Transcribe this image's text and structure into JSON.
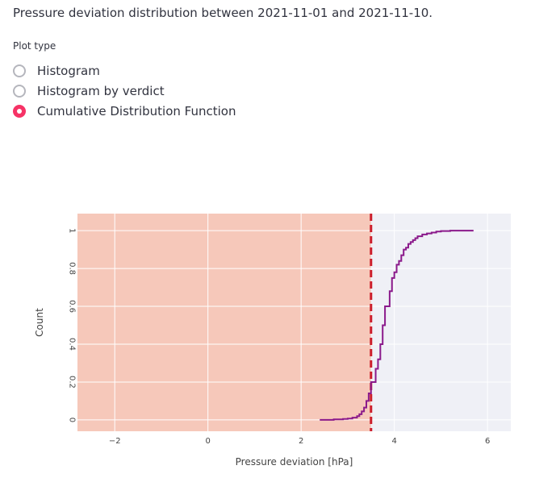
{
  "intro_text": "Pressure deviation distribution between 2021-11-01 and 2021-11-10.",
  "plot_type": {
    "label": "Plot type",
    "options": [
      {
        "label": "Histogram",
        "selected": false
      },
      {
        "label": "Histogram by verdict",
        "selected": false
      },
      {
        "label": "Cumulative Distribution Function",
        "selected": true
      }
    ]
  },
  "colors": {
    "accent": "#f63366",
    "plot_bg": "#eff0f6",
    "threshold_region": "#f6c8ba",
    "threshold_line": "#cc1e2b",
    "series_line": "#8b1a8b"
  },
  "chart_data": {
    "type": "line",
    "line_shape": "step",
    "xlabel": "Pressure deviation [hPa]",
    "ylabel": "Count",
    "xlim": [
      -2.8,
      6.5
    ],
    "ylim": [
      -0.06,
      1.09
    ],
    "xticks": [
      -2,
      0,
      2,
      4,
      6
    ],
    "yticks": [
      0,
      0.2,
      0.4,
      0.6,
      0.8,
      1
    ],
    "ytick_labels": [
      "0",
      "0.2",
      "0.4",
      "0.6",
      "0.8",
      "1"
    ],
    "grid": true,
    "threshold": 3.5,
    "shaded_region": [
      -2.8,
      3.5
    ],
    "series": [
      {
        "x": [
          2.4,
          2.7,
          2.9,
          3.0,
          3.1,
          3.2,
          3.25,
          3.3,
          3.35,
          3.4,
          3.45,
          3.5,
          3.55,
          3.6,
          3.65,
          3.7,
          3.75,
          3.8,
          3.85,
          3.9,
          3.95,
          4.0,
          4.05,
          4.1,
          4.15,
          4.2,
          4.25,
          4.3,
          4.35,
          4.4,
          4.45,
          4.5,
          4.55,
          4.6,
          4.7,
          4.8,
          4.9,
          5.0,
          5.1,
          5.2,
          5.7
        ],
        "y": [
          0,
          0.003,
          0.005,
          0.007,
          0.012,
          0.02,
          0.03,
          0.045,
          0.065,
          0.1,
          0.14,
          0.2,
          0.2,
          0.27,
          0.32,
          0.4,
          0.5,
          0.6,
          0.6,
          0.68,
          0.75,
          0.78,
          0.82,
          0.84,
          0.87,
          0.9,
          0.91,
          0.93,
          0.94,
          0.95,
          0.96,
          0.97,
          0.97,
          0.98,
          0.985,
          0.99,
          0.995,
          0.998,
          0.998,
          1.0,
          1.0
        ]
      }
    ]
  }
}
